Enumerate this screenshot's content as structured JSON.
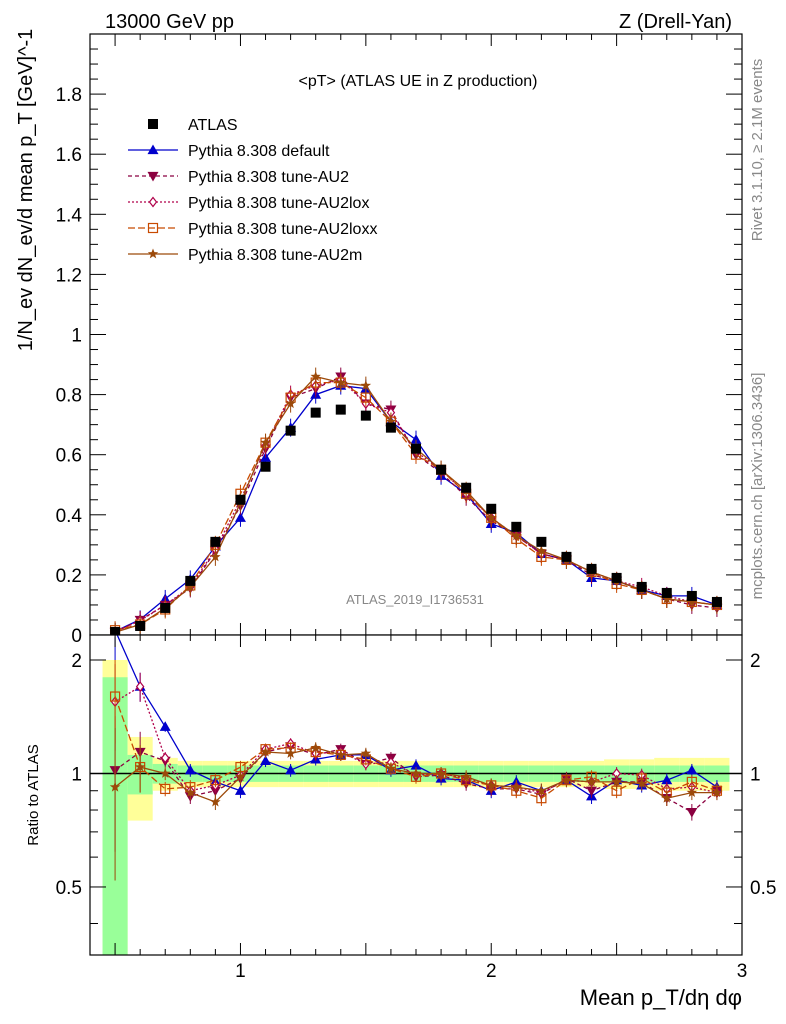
{
  "header": {
    "left": "13000 GeV pp",
    "right": "Z (Drell-Yan)"
  },
  "side": {
    "rivet": "Rivet 3.1.10, ≥ 2.1M events",
    "mcplots": "mcplots.cern.ch [arXiv:1306.3436]"
  },
  "colors": {
    "atlas": "#000000",
    "default": "#0000cc",
    "au2": "#8b0040",
    "au2lox": "#b0004a",
    "au2loxx": "#c84a00",
    "au2m": "#9c4a0a",
    "band_green": "#99ff99",
    "band_yellow": "#ffff99"
  },
  "chart_data": [
    {
      "type": "line",
      "title": "<pT> (ATLAS UE in Z production)",
      "ylabel": "1/N_ev dN_ev/d mean p_T [GeV]^-1",
      "analysis": "ATLAS_2019_I1736531",
      "xlim": [
        0.4,
        3.0
      ],
      "ylim": [
        0,
        2.0
      ],
      "yticks": [
        "0",
        "0.2",
        "0.4",
        "0.6",
        "0.8",
        "1",
        "1.2",
        "1.4",
        "1.6",
        "1.8"
      ],
      "legend_position": "top-left",
      "x": [
        0.5,
        0.6,
        0.7,
        0.8,
        0.9,
        1.0,
        1.1,
        1.2,
        1.3,
        1.4,
        1.5,
        1.6,
        1.7,
        1.8,
        1.9,
        2.0,
        2.1,
        2.2,
        2.3,
        2.4,
        2.5,
        2.6,
        2.7,
        2.8,
        2.9
      ],
      "atlas": {
        "name": "ATLAS",
        "values": [
          0.01,
          0.03,
          0.09,
          0.18,
          0.31,
          0.45,
          0.56,
          0.68,
          0.74,
          0.75,
          0.73,
          0.69,
          0.62,
          0.55,
          0.49,
          0.42,
          0.36,
          0.31,
          0.26,
          0.22,
          0.19,
          0.16,
          0.14,
          0.13,
          0.11
        ]
      },
      "series": [
        {
          "name": "Pythia 8.308 default",
          "key": "default",
          "marker": "triangle-up",
          "dash": "",
          "values": [
            0.012,
            0.052,
            0.12,
            0.185,
            0.295,
            0.39,
            0.59,
            0.69,
            0.8,
            0.83,
            0.82,
            0.71,
            0.65,
            0.53,
            0.47,
            0.37,
            0.34,
            0.27,
            0.25,
            0.19,
            0.18,
            0.15,
            0.13,
            0.13,
            0.1
          ]
        },
        {
          "name": "Pythia 8.308 tune-AU2",
          "key": "au2",
          "marker": "triangle-down",
          "dash": "4,3",
          "values": [
            0.01,
            0.05,
            0.1,
            0.155,
            0.28,
            0.43,
            0.62,
            0.79,
            0.82,
            0.86,
            0.77,
            0.75,
            0.6,
            0.54,
            0.46,
            0.38,
            0.33,
            0.27,
            0.25,
            0.2,
            0.18,
            0.15,
            0.12,
            0.1,
            0.09
          ]
        },
        {
          "name": "Pythia 8.308 tune-AU2lox",
          "key": "au2lox",
          "marker": "diamond-open",
          "dash": "2,2",
          "values": [
            0.011,
            0.048,
            0.1,
            0.16,
            0.285,
            0.45,
            0.63,
            0.8,
            0.83,
            0.85,
            0.77,
            0.74,
            0.61,
            0.55,
            0.47,
            0.39,
            0.33,
            0.27,
            0.25,
            0.21,
            0.18,
            0.16,
            0.13,
            0.11,
            0.1
          ]
        },
        {
          "name": "Pythia 8.308 tune-AU2loxx",
          "key": "au2loxx",
          "marker": "square-open",
          "dash": "7,3",
          "values": [
            0.016,
            0.035,
            0.085,
            0.165,
            0.3,
            0.47,
            0.64,
            0.79,
            0.84,
            0.84,
            0.79,
            0.71,
            0.6,
            0.55,
            0.47,
            0.39,
            0.32,
            0.26,
            0.25,
            0.21,
            0.17,
            0.15,
            0.12,
            0.11,
            0.1
          ]
        },
        {
          "name": "Pythia 8.308 tune-AU2m",
          "key": "au2m",
          "marker": "star",
          "dash": "",
          "values": [
            0.009,
            0.035,
            0.09,
            0.16,
            0.26,
            0.44,
            0.64,
            0.77,
            0.86,
            0.84,
            0.83,
            0.71,
            0.62,
            0.55,
            0.48,
            0.39,
            0.33,
            0.28,
            0.25,
            0.21,
            0.18,
            0.15,
            0.12,
            0.11,
            0.1
          ]
        }
      ]
    },
    {
      "type": "line",
      "ylabel": "Ratio to ATLAS",
      "xlabel": "Mean p_T/dη dφ",
      "xlim": [
        0.4,
        3.0
      ],
      "ylim": [
        0.33,
        2.33
      ],
      "xticks": [
        "1",
        "2",
        "3"
      ],
      "yticks": [
        "0.5",
        "1",
        "2"
      ],
      "x": [
        0.5,
        0.6,
        0.7,
        0.8,
        0.9,
        1.0,
        1.1,
        1.2,
        1.3,
        1.4,
        1.5,
        1.6,
        1.7,
        1.8,
        1.9,
        2.0,
        2.1,
        2.2,
        2.3,
        2.4,
        2.5,
        2.6,
        2.7,
        2.8,
        2.9
      ],
      "band_inner": [
        0.8,
        0.12,
        0.06,
        0.05,
        0.05,
        0.05,
        0.05,
        0.05,
        0.05,
        0.05,
        0.05,
        0.05,
        0.05,
        0.05,
        0.05,
        0.05,
        0.05,
        0.05,
        0.05,
        0.05,
        0.05,
        0.05,
        0.05,
        0.05,
        0.05
      ],
      "band_outer": [
        1.0,
        0.25,
        0.1,
        0.08,
        0.08,
        0.08,
        0.08,
        0.08,
        0.08,
        0.08,
        0.08,
        0.08,
        0.08,
        0.08,
        0.08,
        0.08,
        0.08,
        0.08,
        0.08,
        0.08,
        0.09,
        0.09,
        0.1,
        0.1,
        0.1
      ],
      "series": [
        {
          "name": "Pythia 8.308 default",
          "key": "default",
          "marker": "triangle-up",
          "dash": "",
          "values": [
            2.4,
            1.7,
            1.33,
            1.02,
            0.95,
            0.9,
            1.08,
            1.02,
            1.09,
            1.12,
            1.12,
            1.02,
            1.05,
            0.97,
            0.96,
            0.9,
            0.95,
            0.9,
            0.96,
            0.87,
            0.96,
            0.93,
            0.96,
            1.02,
            0.92
          ]
        },
        {
          "name": "Pythia 8.308 tune-AU2",
          "key": "au2",
          "marker": "triangle-down",
          "dash": "4,3",
          "values": [
            1.02,
            1.14,
            1.08,
            0.87,
            0.9,
            0.97,
            1.14,
            1.18,
            1.12,
            1.16,
            1.06,
            1.1,
            0.98,
            0.99,
            0.94,
            0.91,
            0.91,
            0.88,
            0.97,
            0.9,
            0.95,
            0.95,
            0.86,
            0.79,
            0.9
          ]
        },
        {
          "name": "Pythia 8.308 tune-AU2lox",
          "key": "au2lox",
          "marker": "diamond-open",
          "dash": "2,2",
          "values": [
            1.55,
            1.7,
            1.1,
            0.9,
            0.93,
            0.99,
            1.16,
            1.2,
            1.13,
            1.14,
            1.06,
            1.07,
            0.99,
            1.0,
            0.97,
            0.93,
            0.92,
            0.89,
            0.96,
            0.95,
            1.0,
            0.99,
            0.91,
            0.92,
            0.89
          ]
        },
        {
          "name": "Pythia 8.308 tune-AU2loxx",
          "key": "au2loxx",
          "marker": "square-open",
          "dash": "7,3",
          "values": [
            1.6,
            1.04,
            0.91,
            0.92,
            0.96,
            1.04,
            1.16,
            1.17,
            1.14,
            1.12,
            1.09,
            1.03,
            0.98,
            1.0,
            0.96,
            0.93,
            0.9,
            0.86,
            0.96,
            0.98,
            0.9,
            0.97,
            0.89,
            0.95,
            0.9
          ]
        },
        {
          "name": "Pythia 8.308 tune-AU2m",
          "key": "au2m",
          "marker": "star",
          "dash": "",
          "values": [
            0.92,
            1.04,
            1.0,
            0.89,
            0.84,
            0.98,
            1.14,
            1.13,
            1.17,
            1.12,
            1.13,
            1.03,
            1.0,
            1.0,
            0.98,
            0.93,
            0.92,
            0.9,
            0.96,
            0.95,
            0.95,
            0.94,
            0.86,
            0.89,
            0.89
          ]
        }
      ]
    }
  ]
}
